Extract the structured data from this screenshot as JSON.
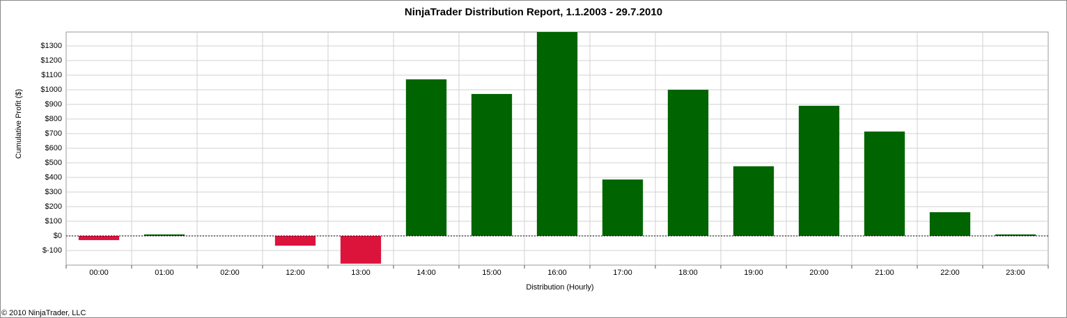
{
  "chart_data": {
    "type": "bar",
    "title": "NinjaTrader Distribution Report, 1.1.2003 - 29.7.2010",
    "x_label": "Distribution (Hourly)",
    "y_label": "Cumulative Profit ($)",
    "footer": "© 2010 NinjaTrader, LLC",
    "categories": [
      "00:00",
      "01:00",
      "02:00",
      "12:00",
      "13:00",
      "14:00",
      "15:00",
      "16:00",
      "17:00",
      "18:00",
      "19:00",
      "20:00",
      "21:00",
      "22:00",
      "23:00"
    ],
    "values": [
      -29,
      10,
      0,
      -67,
      -190,
      1071,
      971,
      1395,
      386,
      1000,
      476,
      890,
      714,
      162,
      10
    ],
    "colors": {
      "positive": "#006400",
      "negative": "#dc143c"
    },
    "ylim": [
      -200,
      1395
    ],
    "yticks": [
      {
        "value": -100,
        "label": "$-100"
      },
      {
        "value": 0,
        "label": "$0"
      },
      {
        "value": 100,
        "label": "$100"
      },
      {
        "value": 200,
        "label": "$200"
      },
      {
        "value": 300,
        "label": "$300"
      },
      {
        "value": 400,
        "label": "$400"
      },
      {
        "value": 500,
        "label": "$500"
      },
      {
        "value": 600,
        "label": "$600"
      },
      {
        "value": 700,
        "label": "$700"
      },
      {
        "value": 800,
        "label": "$800"
      },
      {
        "value": 900,
        "label": "$900"
      },
      {
        "value": 1000,
        "label": "$1000"
      },
      {
        "value": 1100,
        "label": "$1100"
      },
      {
        "value": 1200,
        "label": "$1200"
      },
      {
        "value": 1300,
        "label": "$1300"
      }
    ],
    "grid": true
  }
}
